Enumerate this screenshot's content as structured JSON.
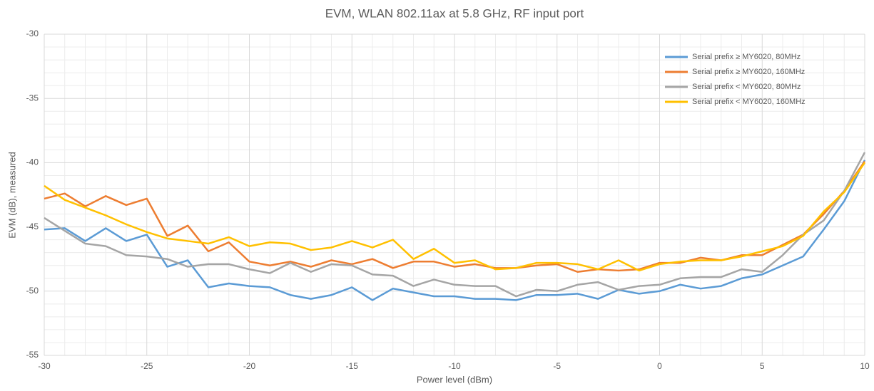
{
  "chart_data": {
    "type": "line",
    "title": "EVM, WLAN 802.11ax at 5.8 GHz, RF input port",
    "x_label": "Power level (dBm)",
    "y_label": "EVM (dB), measured",
    "x": [
      -30,
      -29,
      -28,
      -27,
      -26,
      -25,
      -24,
      -23,
      -22,
      -21,
      -20,
      -19,
      -18,
      -17,
      -16,
      -15,
      -14,
      -13,
      -12,
      -11,
      -10,
      -9,
      -8,
      -7,
      -6,
      -5,
      -4,
      -3,
      -2,
      -1,
      0,
      1,
      2,
      3,
      4,
      5,
      6,
      7,
      8,
      9,
      10
    ],
    "series": [
      {
        "name": "Serial prefix ≥ MY6020, 80MHz",
        "color": "#5b9bd5",
        "values": [
          -45.2,
          -45.1,
          -46.1,
          -45.1,
          -46.1,
          -45.6,
          -48.1,
          -47.6,
          -49.7,
          -49.4,
          -49.6,
          -49.7,
          -50.3,
          -50.6,
          -50.3,
          -49.7,
          -50.7,
          -49.8,
          -50.1,
          -50.4,
          -50.4,
          -50.6,
          -50.6,
          -50.7,
          -50.3,
          -50.3,
          -50.2,
          -50.6,
          -49.9,
          -50.2,
          -50.0,
          -49.5,
          -49.8,
          -49.6,
          -49.0,
          -48.7,
          -48.0,
          -47.3,
          -45.2,
          -43.0,
          -39.8
        ]
      },
      {
        "name": "Serial prefix ≥ MY6020, 160MHz",
        "color": "#ed7d31",
        "values": [
          -42.8,
          -42.4,
          -43.4,
          -42.6,
          -43.3,
          -42.8,
          -45.7,
          -44.9,
          -46.9,
          -46.2,
          -47.7,
          -48.0,
          -47.7,
          -48.1,
          -47.6,
          -47.9,
          -47.5,
          -48.2,
          -47.7,
          -47.7,
          -48.1,
          -47.9,
          -48.2,
          -48.2,
          -48.0,
          -47.9,
          -48.5,
          -48.3,
          -48.4,
          -48.3,
          -47.8,
          -47.8,
          -47.4,
          -47.6,
          -47.2,
          -47.2,
          -46.4,
          -45.6,
          -44.0,
          -42.2,
          -39.9
        ]
      },
      {
        "name": "Serial prefix < MY6020, 80MHz",
        "color": "#a5a5a5",
        "values": [
          -44.3,
          -45.3,
          -46.3,
          -46.5,
          -47.2,
          -47.3,
          -47.5,
          -48.1,
          -47.9,
          -47.9,
          -48.3,
          -48.6,
          -47.8,
          -48.5,
          -47.9,
          -48.0,
          -48.7,
          -48.8,
          -49.6,
          -49.1,
          -49.5,
          -49.6,
          -49.6,
          -50.4,
          -49.9,
          -50.0,
          -49.5,
          -49.3,
          -49.9,
          -49.6,
          -49.5,
          -49.0,
          -48.9,
          -48.9,
          -48.3,
          -48.5,
          -47.2,
          -45.6,
          -44.5,
          -42.2,
          -39.2
        ]
      },
      {
        "name": "Serial prefix < MY6020, 160MHz",
        "color": "#ffc000",
        "values": [
          -41.8,
          -42.9,
          -43.5,
          -44.1,
          -44.8,
          -45.4,
          -45.9,
          -46.1,
          -46.3,
          -45.8,
          -46.5,
          -46.2,
          -46.3,
          -46.8,
          -46.6,
          -46.1,
          -46.6,
          -46.0,
          -47.5,
          -46.7,
          -47.8,
          -47.6,
          -48.3,
          -48.2,
          -47.8,
          -47.8,
          -47.9,
          -48.3,
          -47.6,
          -48.4,
          -47.9,
          -47.7,
          -47.6,
          -47.6,
          -47.3,
          -46.9,
          -46.5,
          -45.7,
          -43.8,
          -42.3,
          -40.0
        ]
      }
    ],
    "xlim": [
      -30,
      10
    ],
    "xticks": [
      -30,
      -25,
      -20,
      -15,
      -10,
      -5,
      0,
      5,
      10
    ],
    "ylim": [
      -55,
      -30
    ],
    "yticks": [
      -55,
      -50,
      -45,
      -40,
      -35,
      -30
    ],
    "grid": true,
    "legend": "upper right"
  }
}
